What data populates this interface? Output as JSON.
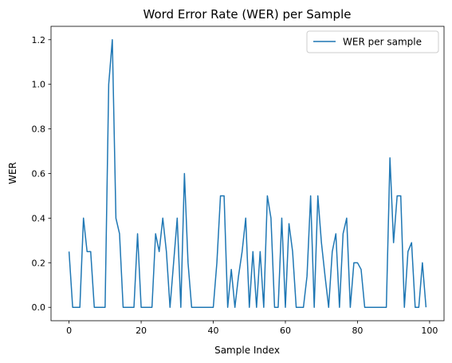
{
  "chart_data": {
    "type": "line",
    "title": "Word Error Rate (WER) per Sample",
    "xlabel": "Sample Index",
    "ylabel": "WER",
    "xlim": [
      -5,
      104
    ],
    "ylim": [
      -0.06,
      1.26
    ],
    "xticks": [
      0,
      20,
      40,
      60,
      80,
      100
    ],
    "yticks": [
      0.0,
      0.2,
      0.4,
      0.6,
      0.8,
      1.0,
      1.2
    ],
    "grid": false,
    "legend_position": "top-right",
    "series": [
      {
        "name": "WER per sample",
        "color": "#1f77b4",
        "x": [
          0,
          1,
          2,
          3,
          4,
          5,
          6,
          7,
          8,
          9,
          10,
          11,
          12,
          13,
          14,
          15,
          16,
          17,
          18,
          19,
          20,
          21,
          22,
          23,
          24,
          25,
          26,
          27,
          28,
          29,
          30,
          31,
          32,
          33,
          34,
          35,
          36,
          37,
          38,
          39,
          40,
          41,
          42,
          43,
          44,
          45,
          46,
          47,
          48,
          49,
          50,
          51,
          52,
          53,
          54,
          55,
          56,
          57,
          58,
          59,
          60,
          61,
          62,
          63,
          64,
          65,
          66,
          67,
          68,
          69,
          70,
          71,
          72,
          73,
          74,
          75,
          76,
          77,
          78,
          79,
          80,
          81,
          82,
          83,
          84,
          85,
          86,
          87,
          88,
          89,
          90,
          91,
          92,
          93,
          94,
          95,
          96,
          97,
          98,
          99
        ],
        "values": [
          0.25,
          0.0,
          0.0,
          0.0,
          0.4,
          0.25,
          0.25,
          0.0,
          0.0,
          0.0,
          0.0,
          1.0,
          1.2,
          0.4,
          0.33,
          0.0,
          0.0,
          0.0,
          0.0,
          0.33,
          0.0,
          0.0,
          0.0,
          0.0,
          0.33,
          0.25,
          0.4,
          0.25,
          0.0,
          0.2,
          0.4,
          0.0,
          0.6,
          0.2,
          0.0,
          0.0,
          0.0,
          0.0,
          0.0,
          0.0,
          0.0,
          0.2,
          0.5,
          0.5,
          0.0,
          0.17,
          0.0,
          0.14,
          0.25,
          0.4,
          0.0,
          0.25,
          0.0,
          0.25,
          0.0,
          0.5,
          0.4,
          0.0,
          0.0,
          0.4,
          0.0,
          0.375,
          0.25,
          0.0,
          0.0,
          0.0,
          0.14,
          0.5,
          0.0,
          0.5,
          0.29,
          0.14,
          0.0,
          0.25,
          0.33,
          0.0,
          0.33,
          0.4,
          0.0,
          0.2,
          0.2,
          0.17,
          0.0,
          0.0,
          0.0,
          0.0,
          0.0,
          0.0,
          0.0,
          0.67,
          0.29,
          0.5,
          0.5,
          0.0,
          0.25,
          0.29,
          0.0,
          0.0,
          0.2,
          0.0
        ]
      }
    ]
  }
}
